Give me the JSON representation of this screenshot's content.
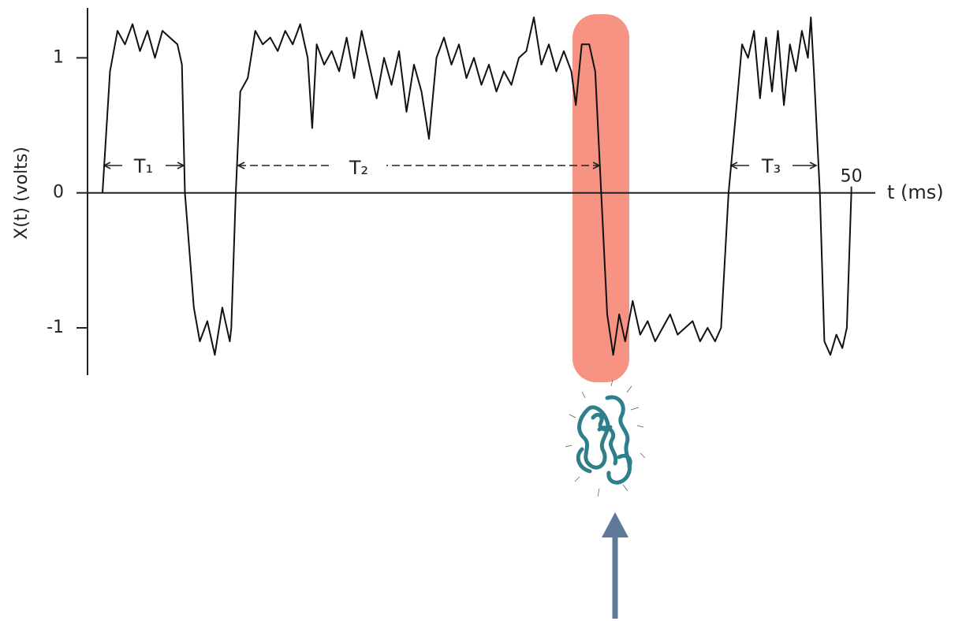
{
  "chart_data": {
    "type": "line",
    "y_label": "X(t) (volts)",
    "x_label": "t (ms)",
    "annotations": [
      "T₁",
      "T₂",
      "T₃"
    ],
    "color": "#111111",
    "xlim": [
      -1,
      51.6
    ],
    "ylim": [
      -1.35,
      1.37
    ],
    "xticks": [
      50
    ],
    "yticks": [
      -1,
      0,
      1
    ],
    "x": [
      0,
      0.5,
      1,
      1.5,
      2,
      2.5,
      3,
      3.5,
      4,
      4.5,
      5,
      5.3,
      5.5,
      6.1,
      6.5,
      7,
      7.5,
      8,
      8.5,
      8.6,
      8.9,
      9.2,
      9.7,
      10.2,
      10.7,
      11.2,
      11.7,
      12.2,
      12.7,
      13.2,
      13.7,
      14,
      14.3,
      14.8,
      15.3,
      15.8,
      16.3,
      16.8,
      17.3,
      17.8,
      18.3,
      18.8,
      19.3,
      19.8,
      20.3,
      20.8,
      21.3,
      21.8,
      22.3,
      22.8,
      23.3,
      23.8,
      24.3,
      24.8,
      25.3,
      25.8,
      26.3,
      26.8,
      27.3,
      27.8,
      28.3,
      28.8,
      29.3,
      29.8,
      30.3,
      30.8,
      31.3,
      31.6,
      32,
      32.5,
      32.9,
      33.3,
      33.7,
      34.1,
      34.5,
      34.9,
      35.4,
      35.9,
      36.4,
      36.9,
      37.4,
      37.9,
      38.4,
      38.9,
      39.4,
      39.9,
      40.4,
      40.9,
      41.3,
      41.8,
      42.3,
      42.7,
      43.1,
      43.5,
      43.9,
      44.3,
      44.7,
      45.1,
      45.5,
      45.9,
      46.3,
      46.7,
      47.1,
      47.3,
      47.5,
      47.9,
      48.2,
      48.6,
      49,
      49.4,
      49.7,
      50
    ],
    "values": [
      0,
      0.9,
      1.2,
      1.1,
      1.25,
      1.05,
      1.2,
      1.0,
      1.2,
      1.15,
      1.1,
      0.95,
      0,
      -0.85,
      -1.1,
      -0.95,
      -1.2,
      -0.85,
      -1.1,
      -1.0,
      0,
      0.75,
      0.85,
      1.2,
      1.1,
      1.15,
      1.05,
      1.2,
      1.1,
      1.25,
      1.0,
      0.48,
      1.1,
      0.95,
      1.05,
      0.9,
      1.15,
      0.85,
      1.2,
      0.95,
      0.7,
      1.0,
      0.8,
      1.05,
      0.6,
      0.95,
      0.75,
      0.4,
      1.0,
      1.15,
      0.95,
      1.1,
      0.85,
      1.0,
      0.8,
      0.95,
      0.75,
      0.9,
      0.8,
      1.0,
      1.05,
      1.3,
      0.95,
      1.1,
      0.9,
      1.05,
      0.9,
      0.65,
      1.1,
      1.1,
      0.9,
      0,
      -0.9,
      -1.2,
      -0.9,
      -1.1,
      -0.8,
      -1.05,
      -0.95,
      -1.1,
      -1.0,
      -0.9,
      -1.05,
      -1.0,
      -0.95,
      -1.1,
      -1.0,
      -1.1,
      -1.0,
      0,
      0.6,
      1.1,
      1.0,
      1.2,
      0.7,
      1.15,
      0.75,
      1.2,
      0.65,
      1.1,
      0.9,
      1.2,
      1.0,
      1.3,
      0.9,
      0,
      -1.1,
      -1.2,
      -1.05,
      -1.15,
      -1.0,
      0
    ]
  }
}
